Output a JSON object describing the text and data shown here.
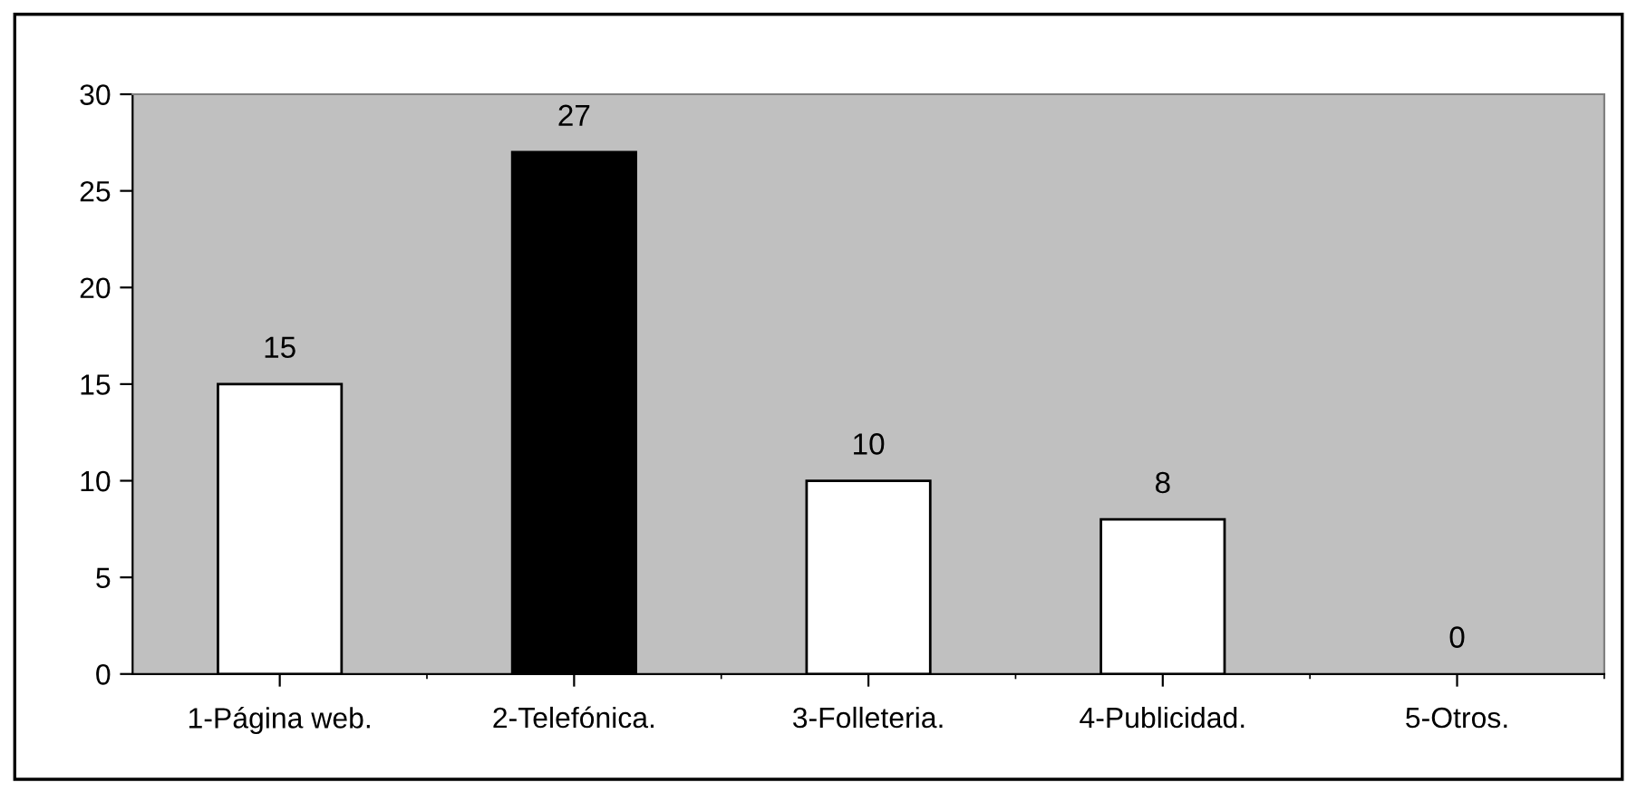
{
  "chart_data": {
    "type": "bar",
    "categories": [
      "1-Página web.",
      "2-Telefónica.",
      "3-Folleteria.",
      "4-Publicidad.",
      "5-Otros."
    ],
    "values": [
      15,
      27,
      10,
      8,
      0
    ],
    "colors": [
      "#ffffff",
      "#000000",
      "#ffffff",
      "#ffffff",
      "#ffffff"
    ],
    "ylim": [
      0,
      30
    ],
    "yticks": [
      0,
      5,
      10,
      15,
      20,
      25,
      30
    ],
    "grid": false,
    "data_labels": true,
    "legend": false
  }
}
